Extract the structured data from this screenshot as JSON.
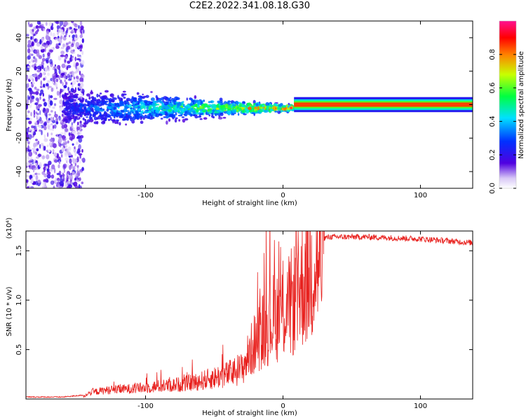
{
  "title": "C2E2.2022.341.08.18.G30",
  "colors": {
    "snr_line": "#e8211e",
    "spectrogram_low": "#d8c8f6",
    "spectrogram_mid": "#5000e0"
  },
  "chart_data": [
    {
      "type": "heatmap",
      "title": "",
      "xlabel": "Height of straight line (km)",
      "ylabel": "Frequency (Hz)",
      "xlim": [
        -187,
        138
      ],
      "ylim": [
        -50,
        50
      ],
      "x_ticks": [
        "-100",
        "0",
        "100"
      ],
      "y_ticks": [
        "-40",
        "-20",
        "0",
        "20",
        "40"
      ],
      "colorbar": {
        "label": "Normalized spectral amplitude",
        "range": [
          0.0,
          1.0
        ],
        "ticks": [
          "0.0",
          "0.2",
          "0.4",
          "0.6",
          "0.8"
        ],
        "colormap": "rainbow (white-lavender → purple → blue → cyan → green → yellow → red → magenta)"
      },
      "features": [
        {
          "description": "diffuse noise speckle",
          "x_range": [
            -187,
            -145
          ],
          "y_range": [
            -50,
            50
          ],
          "amplitude": 0.15
        },
        {
          "description": "signal track near 0 Hz",
          "x_range": [
            -160,
            8
          ],
          "y_center": -2,
          "amplitude": 0.3
        },
        {
          "description": "strong constant tone",
          "x_range": [
            8,
            138
          ],
          "y_center": 0,
          "amplitude": 0.9
        }
      ]
    },
    {
      "type": "line",
      "title": "",
      "xlabel": "Height of straight line (km)",
      "ylabel": "SNR (10 * v/v)",
      "y_scale_note": "(x10⁴)",
      "xlim": [
        -187,
        138
      ],
      "ylim": [
        0,
        1.7
      ],
      "x_ticks": [
        "-100",
        "0",
        "100"
      ],
      "y_ticks": [
        "0.5",
        "1.0",
        "1.5"
      ],
      "series": [
        {
          "x": [
            -187,
            -160,
            -145,
            -140,
            -130,
            -120,
            -100,
            -90,
            -80,
            -70,
            -60,
            -50,
            -40,
            -30,
            -25,
            -20,
            -15,
            -10,
            -5,
            0,
            5,
            10,
            15,
            20,
            25,
            30,
            35,
            40,
            60,
            80,
            100,
            120,
            138
          ],
          "values": [
            0.02,
            0.02,
            0.04,
            0.1,
            0.13,
            0.14,
            0.16,
            0.18,
            0.19,
            0.21,
            0.24,
            0.28,
            0.32,
            0.38,
            0.55,
            0.72,
            0.85,
            0.95,
            1.02,
            1.06,
            1.12,
            1.25,
            1.4,
            1.52,
            1.6,
            1.63,
            1.64,
            1.64,
            1.64,
            1.63,
            1.62,
            1.6,
            1.58
          ]
        }
      ]
    }
  ]
}
